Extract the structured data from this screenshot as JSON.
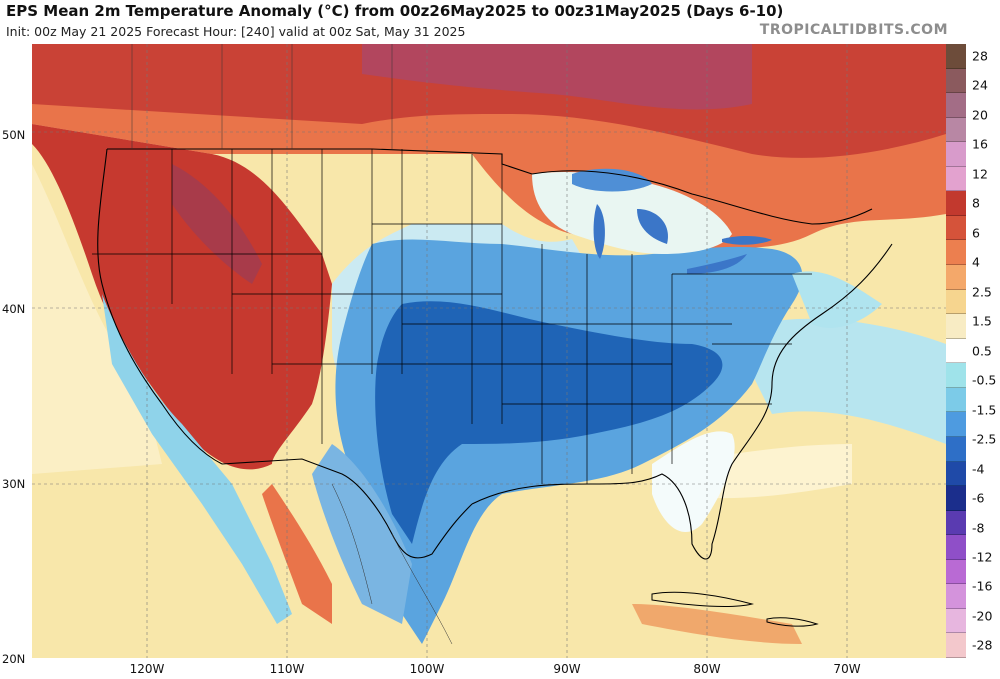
{
  "header": {
    "title": "EPS Mean 2m Temperature Anomaly (°C) from 00z26May2025 to 00z31May2025 (Days 6-10)",
    "subtitle": "Init: 00z May 21 2025   Forecast Hour: [240]   valid at 00z Sat, May 31 2025",
    "brand": "TROPICALTIDBITS.COM"
  },
  "map": {
    "lat_labels": [
      "50N",
      "40N",
      "30N",
      "20N"
    ],
    "lon_labels": [
      "120W",
      "110W",
      "100W",
      "90W",
      "80W",
      "70W"
    ],
    "colors": {
      "ocean_base": "#f8e7aa",
      "gulf_of_maine": "#b0e4ef",
      "west_hot": "#c6392f",
      "north_hot": "#c94236",
      "canada_warm": "#e9744a",
      "plains_cool": "#1e74c8",
      "central_cold": "#1f64b6",
      "great_lakes_light": "#e9f6f2",
      "outline": "#000000"
    }
  },
  "colorbar": {
    "labels": [
      "28",
      "24",
      "20",
      "16",
      "12",
      "8",
      "6",
      "4",
      "2.5",
      "1.5",
      "0.5",
      "-0.5",
      "-1.5",
      "-2.5",
      "-4",
      "-6",
      "-8",
      "-12",
      "-16",
      "-20",
      "-28"
    ],
    "colors": [
      "#6d4c3a",
      "#8b5a5e",
      "#a36d86",
      "#b887a4",
      "#d89bcb",
      "#e3a2cf",
      "#c2392e",
      "#d5533a",
      "#ec7f4f",
      "#f4a86a",
      "#f6d58f",
      "#f8ecc4",
      "#ffffff",
      "#9fe3ea",
      "#7ccbe8",
      "#4e9be0",
      "#2e6fc7",
      "#1f4aa8",
      "#1b2e8c",
      "#5a3bb1",
      "#8f4fc8",
      "#b96ad4",
      "#d493dc",
      "#e7b6df",
      "#f3c8cc"
    ]
  }
}
